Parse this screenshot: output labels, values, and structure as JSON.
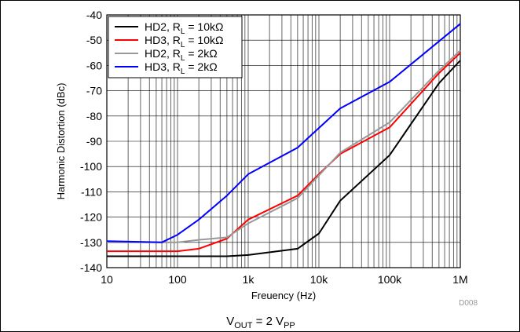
{
  "chart_data": {
    "type": "line",
    "xscale": "log",
    "xlim": [
      10,
      1000000
    ],
    "ylim": [
      -140,
      -40
    ],
    "xlabel": "Freuency (Hz)",
    "ylabel": "Harmonic Distortion (dBc)",
    "xticks": [
      10,
      100,
      1000,
      10000,
      100000,
      1000000
    ],
    "xtick_labels": [
      "10",
      "100",
      "1k",
      "10k",
      "100k",
      "1M"
    ],
    "yticks": [
      -140,
      -130,
      -120,
      -110,
      -100,
      -90,
      -80,
      -70,
      -60,
      -50,
      -40
    ],
    "ytick_labels": [
      "-140",
      "-130",
      "-120",
      "-110",
      "-100",
      "-90",
      "-80",
      "-70",
      "-60",
      "-50",
      "-40"
    ],
    "grid": true,
    "legend_position": "top-left",
    "figure_id": "D008",
    "series": [
      {
        "name_main": "HD2, R",
        "name_sub": "L",
        "name_tail": " = 10kΩ",
        "color": "#000000",
        "x": [
          10,
          100,
          500,
          1000,
          5000,
          10000,
          20000,
          100000,
          500000,
          1000000
        ],
        "y": [
          -135.5,
          -135.5,
          -135.5,
          -135,
          -132.5,
          -126.5,
          -113.5,
          -95.5,
          -67,
          -58
        ]
      },
      {
        "name_main": "HD3, R",
        "name_sub": "L",
        "name_tail": " = 10kΩ",
        "color": "#ff0000",
        "x": [
          10,
          100,
          200,
          500,
          1000,
          5000,
          10000,
          20000,
          100000,
          500000,
          1000000
        ],
        "y": [
          -133.5,
          -133.5,
          -132.5,
          -128.5,
          -121,
          -111.5,
          -103,
          -95,
          -84.5,
          -63,
          -55
        ]
      },
      {
        "name_main": "HD2, R",
        "name_sub": "L",
        "name_tail": " = 2kΩ",
        "color": "#999999",
        "x": [
          10,
          100,
          200,
          500,
          1000,
          5000,
          10000,
          20000,
          100000,
          500000,
          1000000
        ],
        "y": [
          -130,
          -130,
          -129,
          -128,
          -122.5,
          -112.5,
          -103.5,
          -94.5,
          -82.5,
          -62,
          -54
        ]
      },
      {
        "name_main": "HD3, R",
        "name_sub": "L",
        "name_tail": " = 2kΩ",
        "color": "#0000ff",
        "x": [
          10,
          60,
          100,
          200,
          500,
          1000,
          5000,
          20000,
          100000,
          1000000
        ],
        "y": [
          -129.5,
          -130,
          -127,
          -121,
          -111.5,
          -103,
          -92.5,
          -77,
          -66.5,
          -43.5
        ]
      }
    ]
  },
  "caption": {
    "main": "V",
    "sub1": "OUT",
    "mid": " = 2 V",
    "sub2": "PP"
  }
}
